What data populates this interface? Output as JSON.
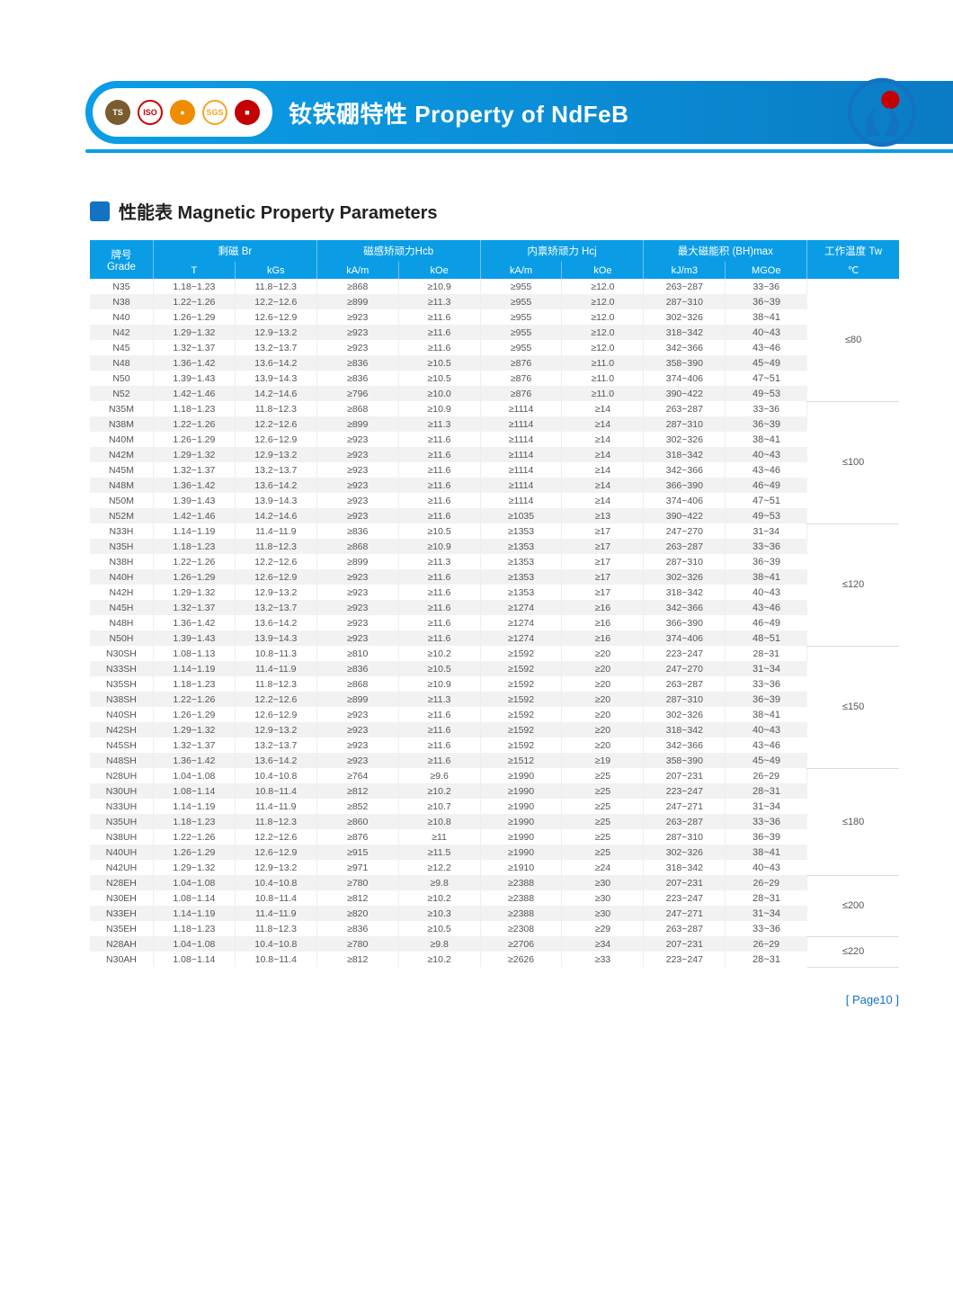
{
  "banner": {
    "title": "钕铁硼特性 Property of NdFeB",
    "badges": [
      {
        "bg": "#7a5c2e",
        "fg": "#fff",
        "text": "TS"
      },
      {
        "bg": "#ffffff",
        "fg": "#c00",
        "text": "ISO",
        "border": "#c00"
      },
      {
        "bg": "#f08c00",
        "fg": "#fff",
        "text": "●"
      },
      {
        "bg": "#ffffff",
        "fg": "#f5a623",
        "text": "SGS",
        "border": "#f5a623"
      },
      {
        "bg": "#c40000",
        "fg": "#fff",
        "text": "■"
      }
    ]
  },
  "section_title": "性能表 Magnetic Property Parameters",
  "header": {
    "grade": "牌号\nGrade",
    "br": "剩磁 Br",
    "hcb": "磁感矫顽力Hcb",
    "hcj": "内禀矫顽力 Hcj",
    "bhmax": "最大磁能积 (BH)max",
    "tw": "工作温度 Tw",
    "units": [
      "T",
      "kGs",
      "kA/m",
      "kOe",
      "kA/m",
      "kOe",
      "kJ/m3",
      "MGOe",
      "℃"
    ]
  },
  "groups": [
    {
      "tw": "≤80",
      "rows": [
        [
          "N35",
          "1.18~1.23",
          "11.8~12.3",
          "≥868",
          "≥10.9",
          "≥955",
          "≥12.0",
          "263~287",
          "33~36"
        ],
        [
          "N38",
          "1.22~1.26",
          "12.2~12.6",
          "≥899",
          "≥11.3",
          "≥955",
          "≥12.0",
          "287~310",
          "36~39"
        ],
        [
          "N40",
          "1.26~1.29",
          "12.6~12.9",
          "≥923",
          "≥11.6",
          "≥955",
          "≥12.0",
          "302~326",
          "38~41"
        ],
        [
          "N42",
          "1.29~1.32",
          "12.9~13.2",
          "≥923",
          "≥11.6",
          "≥955",
          "≥12.0",
          "318~342",
          "40~43"
        ],
        [
          "N45",
          "1.32~1.37",
          "13.2~13.7",
          "≥923",
          "≥11.6",
          "≥955",
          "≥12.0",
          "342~366",
          "43~46"
        ],
        [
          "N48",
          "1.36~1.42",
          "13.6~14.2",
          "≥836",
          "≥10.5",
          "≥876",
          "≥11.0",
          "358~390",
          "45~49"
        ],
        [
          "N50",
          "1.39~1.43",
          "13.9~14.3",
          "≥836",
          "≥10.5",
          "≥876",
          "≥11.0",
          "374~406",
          "47~51"
        ],
        [
          "N52",
          "1.42~1.46",
          "14.2~14.6",
          "≥796",
          "≥10.0",
          "≥876",
          "≥11.0",
          "390~422",
          "49~53"
        ]
      ]
    },
    {
      "tw": "≤100",
      "rows": [
        [
          "N35M",
          "1.18~1.23",
          "11.8~12.3",
          "≥868",
          "≥10.9",
          "≥1114",
          "≥14",
          "263~287",
          "33~36"
        ],
        [
          "N38M",
          "1.22~1.26",
          "12.2~12.6",
          "≥899",
          "≥11.3",
          "≥1114",
          "≥14",
          "287~310",
          "36~39"
        ],
        [
          "N40M",
          "1.26~1.29",
          "12.6~12.9",
          "≥923",
          "≥11.6",
          "≥1114",
          "≥14",
          "302~326",
          "38~41"
        ],
        [
          "N42M",
          "1.29~1.32",
          "12.9~13.2",
          "≥923",
          "≥11.6",
          "≥1114",
          "≥14",
          "318~342",
          "40~43"
        ],
        [
          "N45M",
          "1.32~1.37",
          "13.2~13.7",
          "≥923",
          "≥11.6",
          "≥1114",
          "≥14",
          "342~366",
          "43~46"
        ],
        [
          "N48M",
          "1.36~1.42",
          "13.6~14.2",
          "≥923",
          "≥11.6",
          "≥1114",
          "≥14",
          "366~390",
          "46~49"
        ],
        [
          "N50M",
          "1.39~1.43",
          "13.9~14.3",
          "≥923",
          "≥11.6",
          "≥1114",
          "≥14",
          "374~406",
          "47~51"
        ],
        [
          "N52M",
          "1.42~1.46",
          "14.2~14.6",
          "≥923",
          "≥11.6",
          "≥1035",
          "≥13",
          "390~422",
          "49~53"
        ]
      ]
    },
    {
      "tw": "≤120",
      "rows": [
        [
          "N33H",
          "1.14~1.19",
          "11.4~11.9",
          "≥836",
          "≥10.5",
          "≥1353",
          "≥17",
          "247~270",
          "31~34"
        ],
        [
          "N35H",
          "1.18~1.23",
          "11.8~12.3",
          "≥868",
          "≥10.9",
          "≥1353",
          "≥17",
          "263~287",
          "33~36"
        ],
        [
          "N38H",
          "1.22~1.26",
          "12.2~12.6",
          "≥899",
          "≥11.3",
          "≥1353",
          "≥17",
          "287~310",
          "36~39"
        ],
        [
          "N40H",
          "1.26~1.29",
          "12.6~12.9",
          "≥923",
          "≥11.6",
          "≥1353",
          "≥17",
          "302~326",
          "38~41"
        ],
        [
          "N42H",
          "1.29~1.32",
          "12.9~13.2",
          "≥923",
          "≥11.6",
          "≥1353",
          "≥17",
          "318~342",
          "40~43"
        ],
        [
          "N45H",
          "1.32~1.37",
          "13.2~13.7",
          "≥923",
          "≥11.6",
          "≥1274",
          "≥16",
          "342~366",
          "43~46"
        ],
        [
          "N48H",
          "1.36~1.42",
          "13.6~14.2",
          "≥923",
          "≥11.6",
          "≥1274",
          "≥16",
          "366~390",
          "46~49"
        ],
        [
          "N50H",
          "1.39~1.43",
          "13.9~14.3",
          "≥923",
          "≥11.6",
          "≥1274",
          "≥16",
          "374~406",
          "48~51"
        ]
      ]
    },
    {
      "tw": "≤150",
      "rows": [
        [
          "N30SH",
          "1.08~1.13",
          "10.8~11.3",
          "≥810",
          "≥10.2",
          "≥1592",
          "≥20",
          "223~247",
          "28~31"
        ],
        [
          "N33SH",
          "1.14~1.19",
          "11.4~11.9",
          "≥836",
          "≥10.5",
          "≥1592",
          "≥20",
          "247~270",
          "31~34"
        ],
        [
          "N35SH",
          "1.18~1.23",
          "11.8~12.3",
          "≥868",
          "≥10.9",
          "≥1592",
          "≥20",
          "263~287",
          "33~36"
        ],
        [
          "N38SH",
          "1.22~1.26",
          "12.2~12.6",
          "≥899",
          "≥11.3",
          "≥1592",
          "≥20",
          "287~310",
          "36~39"
        ],
        [
          "N40SH",
          "1.26~1.29",
          "12.6~12.9",
          "≥923",
          "≥11.6",
          "≥1592",
          "≥20",
          "302~326",
          "38~41"
        ],
        [
          "N42SH",
          "1.29~1.32",
          "12.9~13.2",
          "≥923",
          "≥11.6",
          "≥1592",
          "≥20",
          "318~342",
          "40~43"
        ],
        [
          "N45SH",
          "1.32~1.37",
          "13.2~13.7",
          "≥923",
          "≥11.6",
          "≥1592",
          "≥20",
          "342~366",
          "43~46"
        ],
        [
          "N48SH",
          "1.36~1.42",
          "13.6~14.2",
          "≥923",
          "≥11.6",
          "≥1512",
          "≥19",
          "358~390",
          "45~49"
        ]
      ]
    },
    {
      "tw": "≤180",
      "rows": [
        [
          "N28UH",
          "1.04~1.08",
          "10.4~10.8",
          "≥764",
          "≥9.6",
          "≥1990",
          "≥25",
          "207~231",
          "26~29"
        ],
        [
          "N30UH",
          "1.08~1.14",
          "10.8~11.4",
          "≥812",
          "≥10.2",
          "≥1990",
          "≥25",
          "223~247",
          "28~31"
        ],
        [
          "N33UH",
          "1.14~1.19",
          "11.4~11.9",
          "≥852",
          "≥10.7",
          "≥1990",
          "≥25",
          "247~271",
          "31~34"
        ],
        [
          "N35UH",
          "1.18~1.23",
          "11.8~12.3",
          "≥860",
          "≥10.8",
          "≥1990",
          "≥25",
          "263~287",
          "33~36"
        ],
        [
          "N38UH",
          "1.22~1.26",
          "12.2~12.6",
          "≥876",
          "≥11",
          "≥1990",
          "≥25",
          "287~310",
          "36~39"
        ],
        [
          "N40UH",
          "1.26~1.29",
          "12.6~12.9",
          "≥915",
          "≥11.5",
          "≥1990",
          "≥25",
          "302~326",
          "38~41"
        ],
        [
          "N42UH",
          "1.29~1.32",
          "12.9~13.2",
          "≥971",
          "≥12.2",
          "≥1910",
          "≥24",
          "318~342",
          "40~43"
        ]
      ]
    },
    {
      "tw": "≤200",
      "rows": [
        [
          "N28EH",
          "1.04~1.08",
          "10.4~10.8",
          "≥780",
          "≥9.8",
          "≥2388",
          "≥30",
          "207~231",
          "26~29"
        ],
        [
          "N30EH",
          "1.08~1.14",
          "10.8~11.4",
          "≥812",
          "≥10.2",
          "≥2388",
          "≥30",
          "223~247",
          "28~31"
        ],
        [
          "N33EH",
          "1.14~1.19",
          "11.4~11.9",
          "≥820",
          "≥10.3",
          "≥2388",
          "≥30",
          "247~271",
          "31~34"
        ],
        [
          "N35EH",
          "1.18~1.23",
          "11.8~12.3",
          "≥836",
          "≥10.5",
          "≥2308",
          "≥29",
          "263~287",
          "33~36"
        ]
      ]
    },
    {
      "tw": "≤220",
      "rows": [
        [
          "N28AH",
          "1.04~1.08",
          "10.4~10.8",
          "≥780",
          "≥9.8",
          "≥2706",
          "≥34",
          "207~231",
          "26~29"
        ],
        [
          "N30AH",
          "1.08~1.14",
          "10.8~11.4",
          "≥812",
          "≥10.2",
          "≥2626",
          "≥33",
          "223~247",
          "28~31"
        ]
      ]
    }
  ],
  "footer": "[ Page10 ]",
  "colors": {
    "banner_bg": "#0a9de6",
    "header_bg": "#0a9de6",
    "row_even": "#f2f2f2",
    "row_odd": "#ffffff",
    "text": "#555555",
    "accent": "#1272c4"
  }
}
